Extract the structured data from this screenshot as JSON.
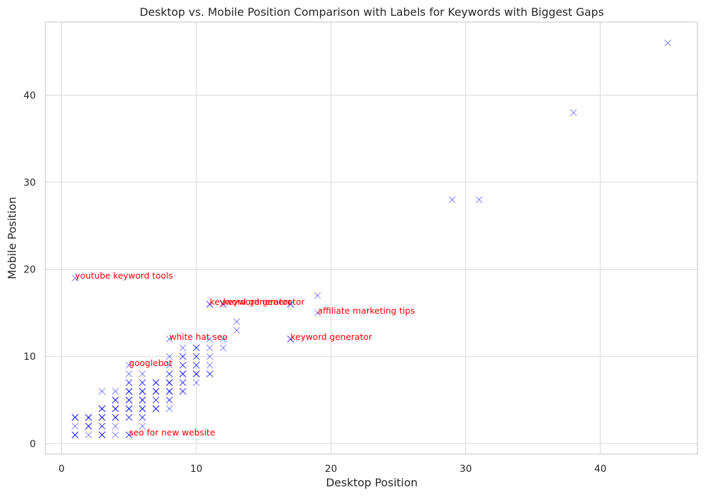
{
  "chart_data": {
    "type": "scatter",
    "title": "Desktop vs. Mobile Position Comparison with Labels for Keywords with Biggest Gaps",
    "xlabel": "Desktop Position",
    "ylabel": "Mobile Position",
    "xlim": [
      -1.2,
      47.2
    ],
    "ylim": [
      -1.2,
      48.4
    ],
    "xticks": [
      0,
      10,
      20,
      30,
      40
    ],
    "yticks": [
      0,
      10,
      20,
      30,
      40
    ],
    "grid": true,
    "marker": "x",
    "marker_color": "#0000ff",
    "marker_alpha": 0.45,
    "annotation_color": "#ff0000",
    "points": [
      [
        1,
        1
      ],
      [
        1,
        1
      ],
      [
        1,
        1
      ],
      [
        1,
        2
      ],
      [
        1,
        3
      ],
      [
        1,
        3
      ],
      [
        1,
        3
      ],
      [
        2,
        1
      ],
      [
        2,
        2
      ],
      [
        2,
        2
      ],
      [
        2,
        2
      ],
      [
        2,
        3
      ],
      [
        2,
        3
      ],
      [
        2,
        3
      ],
      [
        3,
        1
      ],
      [
        3,
        1
      ],
      [
        3,
        1
      ],
      [
        3,
        2
      ],
      [
        3,
        2
      ],
      [
        3,
        3
      ],
      [
        3,
        3
      ],
      [
        3,
        3
      ],
      [
        3,
        4
      ],
      [
        3,
        4
      ],
      [
        3,
        4
      ],
      [
        3,
        6
      ],
      [
        4,
        1
      ],
      [
        4,
        2
      ],
      [
        4,
        3
      ],
      [
        4,
        3
      ],
      [
        4,
        3
      ],
      [
        4,
        4
      ],
      [
        4,
        4
      ],
      [
        4,
        4
      ],
      [
        4,
        5
      ],
      [
        4,
        5
      ],
      [
        4,
        5
      ],
      [
        4,
        6
      ],
      [
        5,
        1
      ],
      [
        5,
        1
      ],
      [
        5,
        3
      ],
      [
        5,
        3
      ],
      [
        5,
        4
      ],
      [
        5,
        4
      ],
      [
        5,
        4
      ],
      [
        5,
        5
      ],
      [
        5,
        5
      ],
      [
        5,
        5
      ],
      [
        5,
        6
      ],
      [
        5,
        6
      ],
      [
        5,
        6
      ],
      [
        5,
        7
      ],
      [
        5,
        7
      ],
      [
        5,
        8
      ],
      [
        5,
        9
      ],
      [
        6,
        2
      ],
      [
        6,
        3
      ],
      [
        6,
        3
      ],
      [
        6,
        4
      ],
      [
        6,
        4
      ],
      [
        6,
        4
      ],
      [
        6,
        5
      ],
      [
        6,
        5
      ],
      [
        6,
        5
      ],
      [
        6,
        6
      ],
      [
        6,
        6
      ],
      [
        6,
        6
      ],
      [
        6,
        7
      ],
      [
        6,
        7
      ],
      [
        6,
        8
      ],
      [
        7,
        4
      ],
      [
        7,
        4
      ],
      [
        7,
        4
      ],
      [
        7,
        5
      ],
      [
        7,
        5
      ],
      [
        7,
        6
      ],
      [
        7,
        6
      ],
      [
        7,
        6
      ],
      [
        7,
        7
      ],
      [
        7,
        7
      ],
      [
        7,
        7
      ],
      [
        8,
        4
      ],
      [
        8,
        5
      ],
      [
        8,
        5
      ],
      [
        8,
        6
      ],
      [
        8,
        6
      ],
      [
        8,
        6
      ],
      [
        8,
        7
      ],
      [
        8,
        7
      ],
      [
        8,
        7
      ],
      [
        8,
        8
      ],
      [
        8,
        8
      ],
      [
        8,
        9
      ],
      [
        8,
        10
      ],
      [
        8,
        12
      ],
      [
        9,
        6
      ],
      [
        9,
        6
      ],
      [
        9,
        7
      ],
      [
        9,
        7
      ],
      [
        9,
        8
      ],
      [
        9,
        8
      ],
      [
        9,
        8
      ],
      [
        9,
        9
      ],
      [
        9,
        9
      ],
      [
        9,
        10
      ],
      [
        9,
        10
      ],
      [
        9,
        11
      ],
      [
        10,
        7
      ],
      [
        10,
        8
      ],
      [
        10,
        8
      ],
      [
        10,
        8
      ],
      [
        10,
        9
      ],
      [
        10,
        9
      ],
      [
        10,
        10
      ],
      [
        10,
        10
      ],
      [
        10,
        11
      ],
      [
        10,
        11
      ],
      [
        11,
        8
      ],
      [
        11,
        8
      ],
      [
        11,
        9
      ],
      [
        11,
        10
      ],
      [
        11,
        11
      ],
      [
        11,
        12
      ],
      [
        11,
        16
      ],
      [
        11,
        16
      ],
      [
        12,
        11
      ],
      [
        12,
        12
      ],
      [
        12,
        16
      ],
      [
        12,
        16
      ],
      [
        13,
        13
      ],
      [
        13,
        14
      ],
      [
        17,
        12
      ],
      [
        17,
        12
      ],
      [
        17,
        16
      ],
      [
        17,
        16
      ],
      [
        19,
        15
      ],
      [
        19,
        17
      ],
      [
        29,
        28
      ],
      [
        31,
        28
      ],
      [
        38,
        38
      ],
      [
        45,
        46
      ],
      [
        1,
        19
      ]
    ],
    "annotations": [
      {
        "x": 1,
        "y": 19,
        "text": "youtube keyword tools"
      },
      {
        "x": 11,
        "y": 16,
        "text": "keyword generator"
      },
      {
        "x": 12,
        "y": 16,
        "text": "keyword generator"
      },
      {
        "x": 19,
        "y": 15,
        "text": "affiliate marketing tips"
      },
      {
        "x": 8,
        "y": 12,
        "text": "white hat seo"
      },
      {
        "x": 17,
        "y": 12,
        "text": "keyword generator"
      },
      {
        "x": 5,
        "y": 9,
        "text": "googlebot"
      },
      {
        "x": 5,
        "y": 1,
        "text": "seo for new website"
      }
    ]
  }
}
